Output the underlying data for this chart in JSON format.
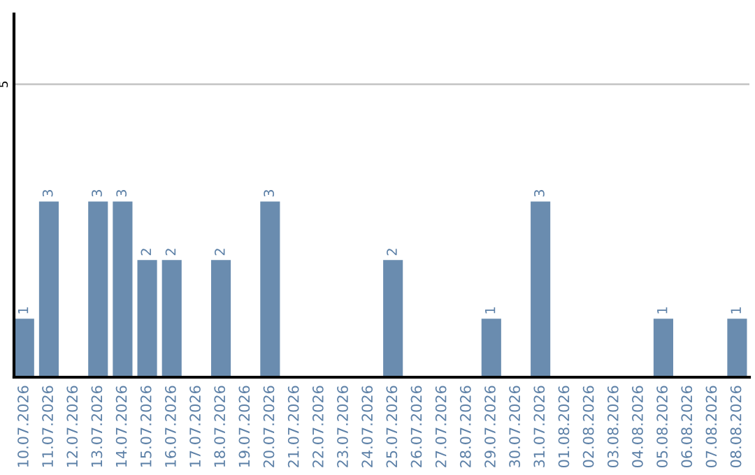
{
  "chart_data": {
    "type": "bar",
    "categories": [
      "10.07.2026",
      "11.07.2026",
      "12.07.2026",
      "13.07.2026",
      "14.07.2026",
      "15.07.2026",
      "16.07.2026",
      "17.07.2026",
      "18.07.2026",
      "19.07.2026",
      "20.07.2026",
      "21.07.2026",
      "22.07.2026",
      "23.07.2026",
      "24.07.2026",
      "25.07.2026",
      "26.07.2026",
      "27.07.2026",
      "28.07.2026",
      "29.07.2026",
      "30.07.2026",
      "31.07.2026",
      "01.08.2026",
      "02.08.2026",
      "03.08.2026",
      "04.08.2026",
      "05.08.2026",
      "06.08.2026",
      "07.08.2026",
      "08.08.2026"
    ],
    "values": [
      1,
      3,
      0,
      3,
      3,
      2,
      2,
      0,
      2,
      0,
      3,
      0,
      0,
      0,
      0,
      2,
      0,
      0,
      0,
      1,
      0,
      3,
      0,
      0,
      0,
      0,
      1,
      0,
      0,
      1
    ],
    "value_labels": [
      "1",
      "3",
      null,
      "3",
      "3",
      "2",
      "2",
      null,
      "2",
      null,
      "3",
      null,
      null,
      null,
      null,
      "2",
      null,
      null,
      null,
      "1",
      null,
      "3",
      null,
      null,
      null,
      null,
      "1",
      null,
      null,
      "1"
    ],
    "color": "#6a8caf",
    "ylim": [
      0,
      6.2
    ],
    "yticks": [
      5
    ],
    "grid": "y"
  }
}
